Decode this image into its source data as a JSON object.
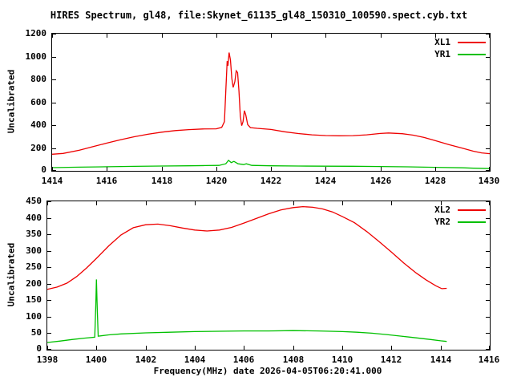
{
  "title": "HIRES Spectrum, gl48, file:Skynet_61135_gl48_150310_100590.spect.cyb.txt",
  "xlabel": "Frequency(MHz) date 2026-04-05T06:20:41.000",
  "colors": {
    "background": "#ffffff",
    "axis": "#000000",
    "xl_series": "#ee0000",
    "yr_series": "#00c000"
  },
  "chart_data": [
    {
      "type": "line",
      "ylabel": "Uncalibrated",
      "xlim": [
        1414,
        1430
      ],
      "ylim": [
        0,
        1200
      ],
      "xticks": [
        1414,
        1416,
        1418,
        1420,
        1422,
        1424,
        1426,
        1428,
        1430
      ],
      "yticks": [
        0,
        200,
        400,
        600,
        800,
        1000,
        1200
      ],
      "legend_position": "top-right",
      "grid": false,
      "series": [
        {
          "name": "XL1",
          "color": "#ee0000",
          "points": [
            [
              1414,
              145
            ],
            [
              1414.4,
              152
            ],
            [
              1415,
              180
            ],
            [
              1415.5,
              212
            ],
            [
              1416,
              243
            ],
            [
              1416.5,
              272
            ],
            [
              1417,
              298
            ],
            [
              1417.5,
              320
            ],
            [
              1418,
              338
            ],
            [
              1418.5,
              352
            ],
            [
              1419,
              361
            ],
            [
              1419.5,
              366
            ],
            [
              1420,
              368
            ],
            [
              1420.2,
              380
            ],
            [
              1420.3,
              430
            ],
            [
              1420.35,
              700
            ],
            [
              1420.4,
              960
            ],
            [
              1420.43,
              920
            ],
            [
              1420.47,
              1035
            ],
            [
              1420.52,
              970
            ],
            [
              1420.57,
              810
            ],
            [
              1420.62,
              730
            ],
            [
              1420.68,
              780
            ],
            [
              1420.73,
              875
            ],
            [
              1420.78,
              860
            ],
            [
              1420.83,
              700
            ],
            [
              1420.88,
              480
            ],
            [
              1420.93,
              395
            ],
            [
              1420.98,
              430
            ],
            [
              1421.03,
              527
            ],
            [
              1421.08,
              490
            ],
            [
              1421.15,
              405
            ],
            [
              1421.25,
              378
            ],
            [
              1421.5,
              372
            ],
            [
              1422,
              362
            ],
            [
              1422.5,
              342
            ],
            [
              1423,
              326
            ],
            [
              1423.5,
              315
            ],
            [
              1424,
              309
            ],
            [
              1424.5,
              307
            ],
            [
              1425,
              308
            ],
            [
              1425.5,
              315
            ],
            [
              1426,
              327
            ],
            [
              1426.3,
              331
            ],
            [
              1426.8,
              325
            ],
            [
              1427.2,
              312
            ],
            [
              1427.6,
              292
            ],
            [
              1428,
              265
            ],
            [
              1428.5,
              230
            ],
            [
              1429,
              198
            ],
            [
              1429.4,
              172
            ],
            [
              1429.7,
              157
            ],
            [
              1430,
              150
            ]
          ]
        },
        {
          "name": "YR1",
          "color": "#00c000",
          "points": [
            [
              1414,
              28
            ],
            [
              1415,
              32
            ],
            [
              1416,
              36
            ],
            [
              1417,
              39
            ],
            [
              1418,
              42
            ],
            [
              1419,
              44
            ],
            [
              1419.6,
              46
            ],
            [
              1420.1,
              48
            ],
            [
              1420.35,
              62
            ],
            [
              1420.45,
              92
            ],
            [
              1420.55,
              72
            ],
            [
              1420.65,
              83
            ],
            [
              1420.8,
              62
            ],
            [
              1421,
              55
            ],
            [
              1421.1,
              62
            ],
            [
              1421.3,
              48
            ],
            [
              1422,
              44
            ],
            [
              1423,
              42
            ],
            [
              1424,
              41
            ],
            [
              1425,
              40
            ],
            [
              1426,
              38
            ],
            [
              1427,
              35
            ],
            [
              1428,
              31
            ],
            [
              1429,
              27
            ],
            [
              1429.4,
              23
            ],
            [
              1430,
              20
            ]
          ]
        }
      ]
    },
    {
      "type": "line",
      "ylabel": "Uncalibrated",
      "xlim": [
        1398,
        1416
      ],
      "ylim": [
        0,
        450
      ],
      "xticks": [
        1398,
        1400,
        1402,
        1404,
        1406,
        1408,
        1410,
        1412,
        1414,
        1416
      ],
      "yticks": [
        0,
        50,
        100,
        150,
        200,
        250,
        300,
        350,
        400,
        450
      ],
      "legend_position": "top-right",
      "grid": false,
      "series": [
        {
          "name": "XL2",
          "color": "#ee0000",
          "points": [
            [
              1398,
              183
            ],
            [
              1398.4,
              190
            ],
            [
              1398.8,
              202
            ],
            [
              1399.2,
              222
            ],
            [
              1399.6,
              248
            ],
            [
              1400,
              277
            ],
            [
              1400.5,
              315
            ],
            [
              1401,
              348
            ],
            [
              1401.5,
              370
            ],
            [
              1402,
              379
            ],
            [
              1402.5,
              381
            ],
            [
              1403,
              376
            ],
            [
              1403.5,
              369
            ],
            [
              1404,
              363
            ],
            [
              1404.5,
              360
            ],
            [
              1405,
              363
            ],
            [
              1405.5,
              371
            ],
            [
              1406,
              384
            ],
            [
              1406.5,
              398
            ],
            [
              1407,
              412
            ],
            [
              1407.5,
              424
            ],
            [
              1408,
              431
            ],
            [
              1408.4,
              434
            ],
            [
              1408.8,
              432
            ],
            [
              1409.2,
              427
            ],
            [
              1409.6,
              418
            ],
            [
              1410,
              404
            ],
            [
              1410.5,
              385
            ],
            [
              1411,
              358
            ],
            [
              1411.5,
              328
            ],
            [
              1412,
              296
            ],
            [
              1412.5,
              263
            ],
            [
              1413,
              233
            ],
            [
              1413.4,
              212
            ],
            [
              1413.8,
              194
            ],
            [
              1414.05,
              185
            ],
            [
              1414.25,
              186
            ]
          ]
        },
        {
          "name": "YR2",
          "color": "#00c000",
          "points": [
            [
              1398,
              22
            ],
            [
              1398.5,
              26
            ],
            [
              1399,
              31
            ],
            [
              1399.5,
              35
            ],
            [
              1399.93,
              38
            ],
            [
              1399.97,
              126
            ],
            [
              1400,
              213
            ],
            [
              1400.03,
              126
            ],
            [
              1400.07,
              41
            ],
            [
              1400.5,
              45
            ],
            [
              1401,
              48
            ],
            [
              1402,
              51
            ],
            [
              1403,
              53
            ],
            [
              1404,
              55
            ],
            [
              1405,
              56
            ],
            [
              1406,
              57
            ],
            [
              1407,
              57
            ],
            [
              1408,
              58
            ],
            [
              1409,
              57
            ],
            [
              1410,
              55
            ],
            [
              1410.6,
              53
            ],
            [
              1411.2,
              50
            ],
            [
              1411.8,
              46
            ],
            [
              1412.4,
              41
            ],
            [
              1413,
              36
            ],
            [
              1413.6,
              31
            ],
            [
              1414,
              27
            ],
            [
              1414.25,
              25
            ]
          ]
        }
      ]
    }
  ]
}
